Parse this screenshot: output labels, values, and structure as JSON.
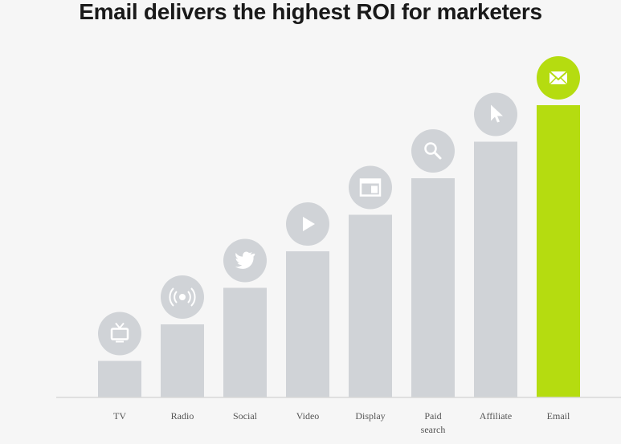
{
  "chart_data": {
    "type": "bar",
    "title": "Email delivers the highest ROI for marketers",
    "xlabel": "",
    "ylabel": "",
    "ylim": [
      0,
      8
    ],
    "grid": false,
    "categories": [
      "TV",
      "Radio",
      "Social",
      "Video",
      "Display",
      "Paid search",
      "Affiliate",
      "Email"
    ],
    "category_lines": [
      [
        "TV"
      ],
      [
        "Radio"
      ],
      [
        "Social"
      ],
      [
        "Video"
      ],
      [
        "Display"
      ],
      [
        "Paid",
        "search"
      ],
      [
        "Affiliate"
      ],
      [
        "Email"
      ]
    ],
    "values": [
      1,
      2,
      3,
      4,
      5,
      6,
      7,
      8
    ],
    "icons": [
      "tv-icon",
      "radio-broadcast-icon",
      "twitter-bird-icon",
      "play-icon",
      "display-window-icon",
      "search-icon",
      "cursor-icon",
      "envelope-icon"
    ],
    "highlight": "Email",
    "colors": {
      "bar": "#d0d3d7",
      "highlight": "#b5dc10",
      "icon_circle": "#d0d3d7",
      "icon_glyph": "#ffffff",
      "axis": "#d8d8d8",
      "label": "#555555"
    }
  }
}
